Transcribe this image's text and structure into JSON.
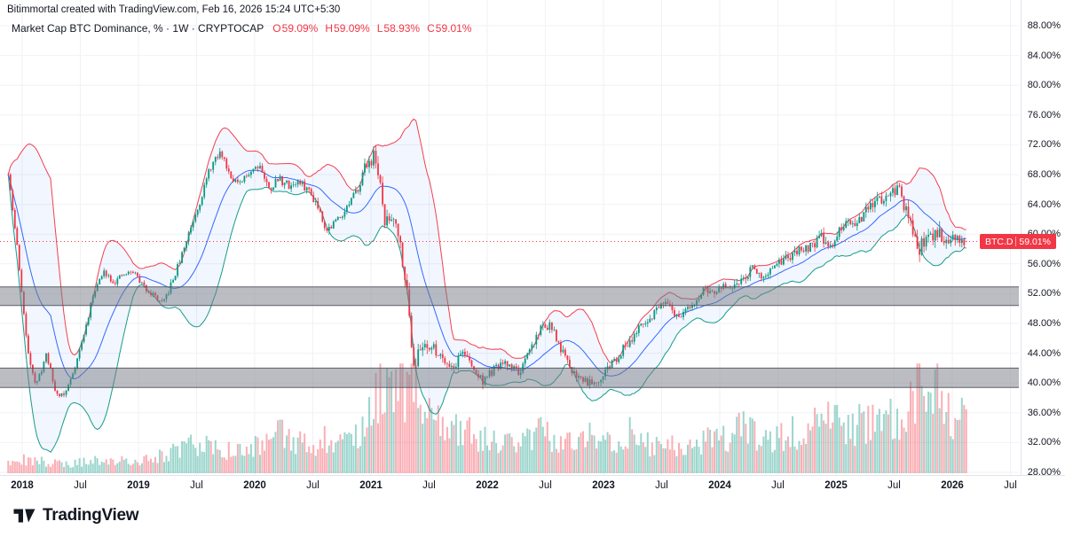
{
  "attribution": "Bitimmortal created with TradingView.com, Feb 16, 2026 15:24 UTC+5:30",
  "legend": {
    "title": "Market Cap BTC Dominance, % · 1W · CRYPTOCAP",
    "ohlc": [
      {
        "label": "O",
        "value": "59.09%"
      },
      {
        "label": "H",
        "value": "59.09%"
      },
      {
        "label": "L",
        "value": "58.93%"
      },
      {
        "label": "C",
        "value": "59.01%"
      }
    ]
  },
  "price_label": {
    "symbol": "BTC.D",
    "price": "59.01%"
  },
  "footer": {
    "brand": "TradingView"
  },
  "colors": {
    "up": "#089981",
    "down": "#f23645",
    "bb_basis": "#2962ff",
    "bb_upper": "#f23645",
    "bb_lower": "#089981",
    "bb_fill": "rgba(41,98,255,0.06)",
    "grid": "#f0f2f5",
    "zone_fill": "rgba(120,123,134,0.5)",
    "zone_border": "rgba(70,73,84,0.85)",
    "price_line": "#f23645",
    "axis_text": "#131722"
  },
  "chart_data": {
    "type": "candlestick",
    "title": "Market Cap BTC Dominance",
    "symbol": "CRYPTOCAP:BTC.D",
    "interval": "1W",
    "unit": "%",
    "ohlc_latest": {
      "open": 59.09,
      "high": 59.09,
      "low": 58.93,
      "close": 59.01
    },
    "current_price": 59.01,
    "y_axis": {
      "min": 28,
      "max": 88,
      "tick_step": 4,
      "labels": [
        "88.00%",
        "84.00%",
        "80.00%",
        "76.00%",
        "72.00%",
        "68.00%",
        "64.00%",
        "60.00%",
        "56.00%",
        "52.00%",
        "48.00%",
        "44.00%",
        "40.00%",
        "36.00%",
        "32.00%",
        "28.00%"
      ]
    },
    "x_axis": {
      "labels": [
        {
          "text": "2018",
          "t": 2018.0,
          "major": true
        },
        {
          "text": "Jul",
          "t": 2018.5,
          "major": false
        },
        {
          "text": "2019",
          "t": 2019.0,
          "major": true
        },
        {
          "text": "Jul",
          "t": 2019.5,
          "major": false
        },
        {
          "text": "2020",
          "t": 2020.0,
          "major": true
        },
        {
          "text": "Jul",
          "t": 2020.5,
          "major": false
        },
        {
          "text": "2021",
          "t": 2021.0,
          "major": true
        },
        {
          "text": "Jul",
          "t": 2021.5,
          "major": false
        },
        {
          "text": "2022",
          "t": 2022.0,
          "major": true
        },
        {
          "text": "Jul",
          "t": 2022.5,
          "major": false
        },
        {
          "text": "2023",
          "t": 2023.0,
          "major": true
        },
        {
          "text": "Jul",
          "t": 2023.5,
          "major": false
        },
        {
          "text": "2024",
          "t": 2024.0,
          "major": true
        },
        {
          "text": "Jul",
          "t": 2024.5,
          "major": false
        },
        {
          "text": "2025",
          "t": 2025.0,
          "major": true
        },
        {
          "text": "Jul",
          "t": 2025.5,
          "major": false
        },
        {
          "text": "2026",
          "t": 2026.0,
          "major": true
        },
        {
          "text": "Jul",
          "t": 2026.5,
          "major": false
        }
      ]
    },
    "zones": [
      {
        "from": 50.4,
        "to": 52.9
      },
      {
        "from": 39.4,
        "to": 42.0
      }
    ],
    "indicators": {
      "bollinger": {
        "period": 20,
        "stddev": 2
      }
    },
    "volume_pane_height_frac": 0.22,
    "series_monthly": {
      "t": [
        2017.88,
        2017.96,
        2018.04,
        2018.12,
        2018.21,
        2018.29,
        2018.37,
        2018.46,
        2018.54,
        2018.62,
        2018.71,
        2018.79,
        2018.87,
        2018.96,
        2019.04,
        2019.12,
        2019.21,
        2019.29,
        2019.37,
        2019.46,
        2019.54,
        2019.62,
        2019.71,
        2019.79,
        2019.87,
        2019.96,
        2020.04,
        2020.12,
        2020.21,
        2020.29,
        2020.37,
        2020.46,
        2020.54,
        2020.62,
        2020.71,
        2020.79,
        2020.87,
        2020.96,
        2021.04,
        2021.12,
        2021.21,
        2021.29,
        2021.37,
        2021.46,
        2021.54,
        2021.62,
        2021.71,
        2021.79,
        2021.87,
        2021.96,
        2022.04,
        2022.12,
        2022.21,
        2022.29,
        2022.37,
        2022.46,
        2022.54,
        2022.62,
        2022.71,
        2022.79,
        2022.87,
        2022.96,
        2023.04,
        2023.12,
        2023.21,
        2023.29,
        2023.37,
        2023.46,
        2023.54,
        2023.62,
        2023.71,
        2023.79,
        2023.87,
        2023.96,
        2024.04,
        2024.12,
        2024.21,
        2024.29,
        2024.37,
        2024.46,
        2024.54,
        2024.62,
        2024.71,
        2024.79,
        2024.87,
        2024.96,
        2025.04,
        2025.12,
        2025.21,
        2025.29,
        2025.37,
        2025.46,
        2025.54,
        2025.62,
        2025.71,
        2025.79,
        2025.87,
        2025.96,
        2026.04,
        2026.12
      ],
      "close": [
        68,
        58,
        45,
        39.5,
        44,
        38.5,
        38.5,
        42.5,
        47,
        52.5,
        55,
        53.5,
        54.5,
        55,
        53,
        52,
        50.5,
        53.5,
        57,
        61.5,
        65,
        69,
        71,
        68,
        66.5,
        68.5,
        69.5,
        66,
        67.5,
        66.5,
        67,
        66,
        64,
        60.5,
        62,
        63.5,
        65.5,
        69.5,
        70.5,
        61.5,
        62.5,
        55,
        42.5,
        45.5,
        44.5,
        43.5,
        42,
        44.5,
        42,
        40.3,
        41.5,
        42.5,
        42.3,
        41.3,
        44.5,
        47.5,
        47.8,
        45,
        42,
        40.8,
        40.3,
        40.5,
        42,
        43.5,
        45.5,
        47,
        48,
        50,
        50.5,
        49,
        49.5,
        51,
        52.5,
        52,
        53,
        52.5,
        54.5,
        55.5,
        54.5,
        55,
        56.5,
        57,
        58,
        58.5,
        59.5,
        58.5,
        60.5,
        61.5,
        62,
        63.5,
        64.5,
        65.5,
        66,
        62,
        58,
        59.5,
        60.5,
        59,
        59.5,
        59.01
      ],
      "volume_rel": [
        0.1,
        0.12,
        0.15,
        0.14,
        0.12,
        0.1,
        0.1,
        0.11,
        0.12,
        0.13,
        0.12,
        0.11,
        0.13,
        0.14,
        0.14,
        0.16,
        0.18,
        0.22,
        0.26,
        0.3,
        0.3,
        0.28,
        0.26,
        0.24,
        0.22,
        0.25,
        0.3,
        0.32,
        0.42,
        0.35,
        0.32,
        0.3,
        0.32,
        0.36,
        0.32,
        0.3,
        0.36,
        0.5,
        0.95,
        0.85,
        0.8,
        0.9,
        1.0,
        0.7,
        0.55,
        0.5,
        0.52,
        0.48,
        0.42,
        0.38,
        0.32,
        0.3,
        0.32,
        0.35,
        0.42,
        0.45,
        0.36,
        0.32,
        0.36,
        0.32,
        0.5,
        0.32,
        0.36,
        0.32,
        0.45,
        0.32,
        0.3,
        0.32,
        0.34,
        0.28,
        0.28,
        0.32,
        0.36,
        0.32,
        0.36,
        0.42,
        0.48,
        0.42,
        0.38,
        0.34,
        0.38,
        0.46,
        0.42,
        0.48,
        0.58,
        0.52,
        0.52,
        0.48,
        0.52,
        0.58,
        0.52,
        0.58,
        0.62,
        0.8,
        0.88,
        0.7,
        1.0,
        0.62,
        0.55,
        0.7
      ]
    }
  }
}
